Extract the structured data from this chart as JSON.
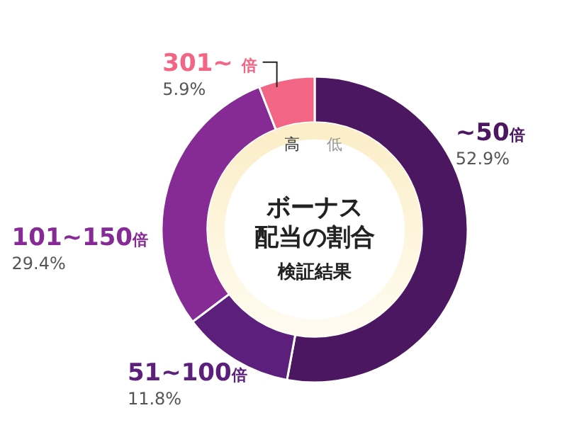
{
  "chart_data": {
    "type": "donut",
    "title": "ボーナス配当の割合",
    "subtitle": "検証結果",
    "categories": [
      "~50倍",
      "51~100倍",
      "101~150倍",
      "301~ 倍"
    ],
    "values": [
      52.9,
      11.8,
      29.4,
      5.9
    ],
    "colors": [
      "#4b1760",
      "#5c1f7c",
      "#862a96",
      "#f26585"
    ],
    "value_labels": [
      "52.9%",
      "11.8%",
      "29.4%",
      "5.9%"
    ],
    "annotations": [
      "高",
      "低"
    ]
  }
}
